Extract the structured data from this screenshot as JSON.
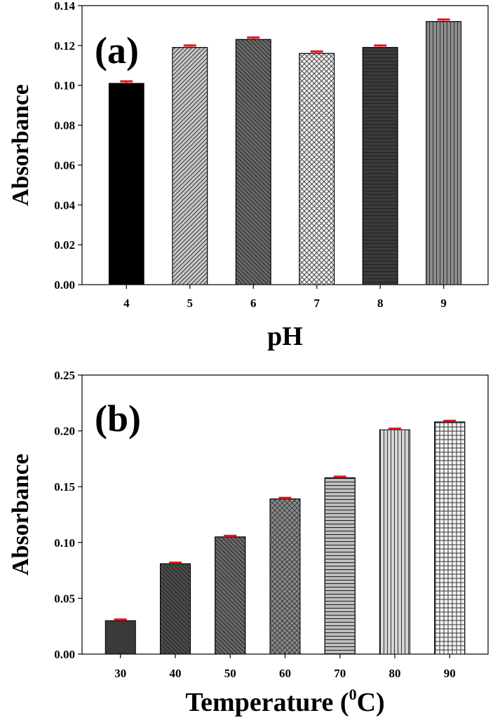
{
  "chart_data": [
    {
      "type": "bar",
      "panel_label": "(a)",
      "xlabel": "pH",
      "ylabel": "Absorbance",
      "categories": [
        "4",
        "5",
        "6",
        "7",
        "8",
        "9"
      ],
      "values": [
        0.101,
        0.119,
        0.123,
        0.116,
        0.119,
        0.132
      ],
      "error": [
        0.001,
        0.001,
        0.001,
        0.001,
        0.001,
        0.001
      ],
      "ylim": [
        0,
        0.14
      ],
      "yticks": [
        "0.00",
        "0.02",
        "0.04",
        "0.06",
        "0.08",
        "0.10",
        "0.12",
        "0.14"
      ],
      "error_bar_color": "#e8141c",
      "grid": false,
      "legend": "none",
      "bar_styles": [
        {
          "fill": "#000000",
          "pattern": "solid"
        },
        {
          "fill": "#c8c8c8",
          "pattern": "diag-right"
        },
        {
          "fill": "#6a6a6a",
          "pattern": "diag-left"
        },
        {
          "fill": "#f0f0f0",
          "pattern": "crosshatch"
        },
        {
          "fill": "#3a3a3a",
          "pattern": "horizontal"
        },
        {
          "fill": "#8c8c8c",
          "pattern": "vertical"
        }
      ]
    },
    {
      "type": "bar",
      "panel_label": "(b)",
      "xlabel": "Temperature (",
      "xlabel_superscript": "0",
      "xlabel_suffix": "C)",
      "ylabel": "Absorbance",
      "categories": [
        "30",
        "40",
        "50",
        "60",
        "70",
        "80",
        "90"
      ],
      "values": [
        0.03,
        0.081,
        0.105,
        0.139,
        0.158,
        0.201,
        0.208
      ],
      "error": [
        0.001,
        0.001,
        0.001,
        0.001,
        0.001,
        0.001,
        0.001
      ],
      "ylim": [
        0,
        0.25
      ],
      "yticks": [
        "0.00",
        "0.05",
        "0.10",
        "0.15",
        "0.20",
        "0.25"
      ],
      "error_bar_color": "#e8141c",
      "grid": false,
      "legend": "none",
      "bar_styles": [
        {
          "fill": "#3a3a3a",
          "pattern": "solid"
        },
        {
          "fill": "#4a4a4a",
          "pattern": "diag-left"
        },
        {
          "fill": "#6a6a6a",
          "pattern": "diag-left"
        },
        {
          "fill": "#8a8a8a",
          "pattern": "crosshatch"
        },
        {
          "fill": "#bdbdbd",
          "pattern": "horizontal"
        },
        {
          "fill": "#d6d6d6",
          "pattern": "vertical"
        },
        {
          "fill": "#f4f4f4",
          "pattern": "grid"
        }
      ]
    }
  ]
}
